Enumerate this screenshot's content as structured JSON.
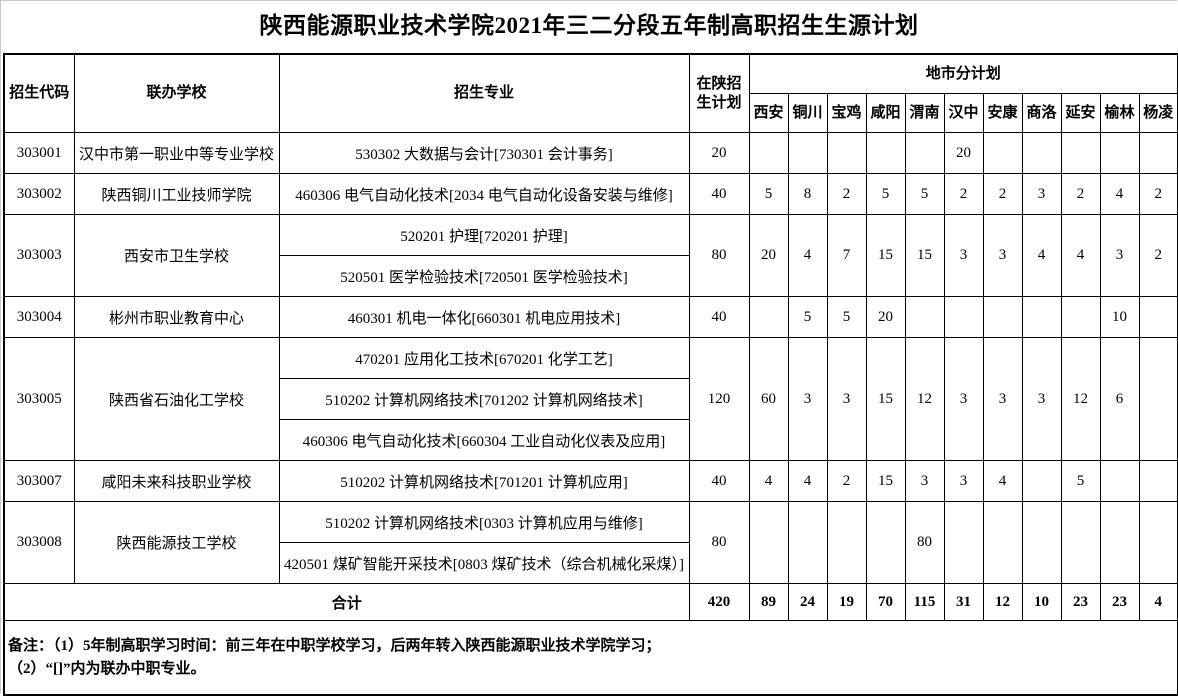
{
  "title": "陕西能源职业技术学院2021年三二分段五年制高职招生生源计划",
  "table": {
    "headers": {
      "code": "招生代码",
      "school": "联办学校",
      "major": "招生专业",
      "plan": "在陕招生计划",
      "city_group": "地市分计划",
      "cities": [
        "西安",
        "铜川",
        "宝鸡",
        "咸阳",
        "渭南",
        "汉中",
        "安康",
        "商洛",
        "延安",
        "榆林",
        "杨凌"
      ]
    },
    "rows": [
      {
        "code": "303001",
        "school": "汉中市第一职业中等专业学校",
        "majors": [
          "530302 大数据与会计[730301 会计事务]"
        ],
        "plan": "20",
        "cities": [
          "",
          "",
          "",
          "",
          "",
          "20",
          "",
          "",
          "",
          "",
          ""
        ]
      },
      {
        "code": "303002",
        "school": "陕西铜川工业技师学院",
        "majors": [
          "460306 电气自动化技术[2034 电气自动化设备安装与维修]"
        ],
        "plan": "40",
        "cities": [
          "5",
          "8",
          "2",
          "5",
          "5",
          "2",
          "2",
          "3",
          "2",
          "4",
          "2"
        ]
      },
      {
        "code": "303003",
        "school": "西安市卫生学校",
        "majors": [
          "520201 护理[720201 护理]",
          "520501 医学检验技术[720501 医学检验技术]"
        ],
        "plan": "80",
        "cities": [
          "20",
          "4",
          "7",
          "15",
          "15",
          "3",
          "3",
          "4",
          "4",
          "3",
          "2"
        ]
      },
      {
        "code": "303004",
        "school": "彬州市职业教育中心",
        "majors": [
          "460301 机电一体化[660301 机电应用技术]"
        ],
        "plan": "40",
        "cities": [
          "",
          "5",
          "5",
          "20",
          "",
          "",
          "",
          "",
          "",
          "10",
          ""
        ]
      },
      {
        "code": "303005",
        "school": "陕西省石油化工学校",
        "majors": [
          "470201 应用化工技术[670201 化学工艺]",
          "510202 计算机网络技术[701202 计算机网络技术]",
          "460306 电气自动化技术[660304 工业自动化仪表及应用]"
        ],
        "plan": "120",
        "cities": [
          "60",
          "3",
          "3",
          "15",
          "12",
          "3",
          "3",
          "3",
          "12",
          "6",
          ""
        ]
      },
      {
        "code": "303007",
        "school": "咸阳未来科技职业学校",
        "majors": [
          "510202 计算机网络技术[701201 计算机应用]"
        ],
        "plan": "40",
        "cities": [
          "4",
          "4",
          "2",
          "15",
          "3",
          "3",
          "4",
          "",
          "5",
          "",
          ""
        ]
      },
      {
        "code": "303008",
        "school": "陕西能源技工学校",
        "majors": [
          "510202 计算机网络技术[0303 计算机应用与维修]",
          "420501 煤矿智能开采技术[0803 煤矿技术（综合机械化采煤）]"
        ],
        "plan": "80",
        "cities": [
          "",
          "",
          "",
          "",
          "80",
          "",
          "",
          "",
          "",
          "",
          ""
        ]
      }
    ],
    "totals": {
      "label": "合计",
      "plan": "420",
      "cities": [
        "89",
        "24",
        "19",
        "70",
        "115",
        "31",
        "12",
        "10",
        "23",
        "23",
        "4"
      ]
    }
  },
  "notes": [
    "备注：（1）5年制高职学习时间：前三年在中职学校学习，后两年转入陕西能源职业技术学院学习；",
    "（2）“[]”内为联办中职专业。"
  ],
  "colors": {
    "border": "#000000",
    "crop_edge": "#c9c9c9",
    "background": "#ffffff",
    "text": "#000000"
  }
}
